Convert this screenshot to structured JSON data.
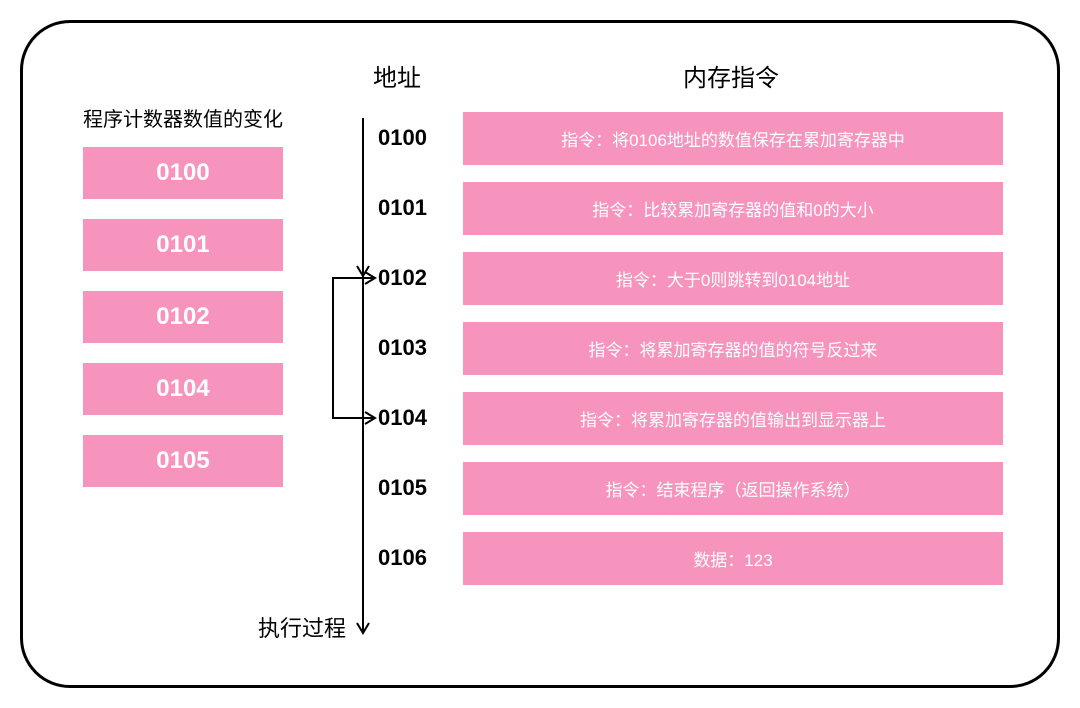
{
  "leftTitle": "程序计数器数值的变化",
  "counterValues": [
    "0100",
    "0101",
    "0102",
    "0104",
    "0105"
  ],
  "headers": {
    "address": "地址",
    "memory": "内存指令"
  },
  "instructions": [
    {
      "address": "0100",
      "text": "指令：将0106地址的数值保存在累加寄存器中"
    },
    {
      "address": "0101",
      "text": "指令：比较累加寄存器的值和0的大小"
    },
    {
      "address": "0102",
      "text": "指令：大于0则跳转到0104地址"
    },
    {
      "address": "0103",
      "text": "指令：将累加寄存器的值的符号反过来"
    },
    {
      "address": "0104",
      "text": "指令：将累加寄存器的值输出到显示器上"
    },
    {
      "address": "0105",
      "text": "指令：结束程序（返回操作系统）"
    },
    {
      "address": "0106",
      "text": "数据：123"
    }
  ],
  "execLabel": "执行过程",
  "colors": {
    "boxBg": "#f794bd",
    "boxText": "#ffffff",
    "border": "#000000",
    "text": "#000000",
    "pageBg": "#ffffff"
  },
  "flow": {
    "strokeColor": "#000000",
    "strokeWidth": 2,
    "mainStart": [
      40,
      0
    ],
    "mainEnd": [
      40,
      520
    ],
    "branch1": {
      "fromY": 180,
      "toY": 180,
      "inX": 10,
      "outX": 50
    },
    "branch2": {
      "fromY": 320,
      "toY": 320,
      "inX": 10,
      "outX": 50
    }
  }
}
